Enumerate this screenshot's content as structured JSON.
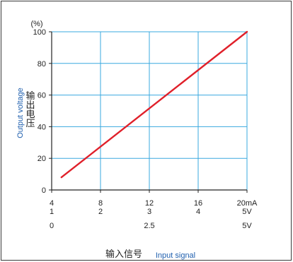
{
  "chart_data": {
    "type": "line",
    "y_unit": "(%)",
    "yticks": [
      "0",
      "20",
      "40",
      "60",
      "80",
      "100"
    ],
    "ylim": [
      0,
      100
    ],
    "xlim": [
      4,
      20
    ],
    "x_rows": [
      {
        "ticks": [
          {
            "x": 4,
            "label": "4"
          },
          {
            "x": 8,
            "label": "8"
          },
          {
            "x": 12,
            "label": "12"
          },
          {
            "x": 16,
            "label": "16"
          },
          {
            "x": 20,
            "label": "20mA"
          }
        ]
      },
      {
        "ticks": [
          {
            "x": 4,
            "label": "1"
          },
          {
            "x": 8,
            "label": "2"
          },
          {
            "x": 12,
            "label": "3"
          },
          {
            "x": 16,
            "label": "4"
          },
          {
            "x": 20,
            "label": "5V"
          }
        ]
      },
      {
        "ticks": [
          {
            "x": 4,
            "label": "0"
          },
          {
            "x": 12,
            "label": "2.5"
          },
          {
            "x": 20,
            "label": "5V"
          }
        ]
      }
    ],
    "xlabel_cn": "输入信号",
    "xlabel_en": "Input signal",
    "ylabel_cn": [
      "输",
      "出",
      "电",
      "压"
    ],
    "ylabel_en": "Output voltage",
    "grid": true,
    "line_color": "#e0202a",
    "grid_color": "#3aa8df",
    "series": [
      {
        "x": [
          4.8,
          20
        ],
        "y": [
          8,
          100
        ]
      }
    ]
  }
}
